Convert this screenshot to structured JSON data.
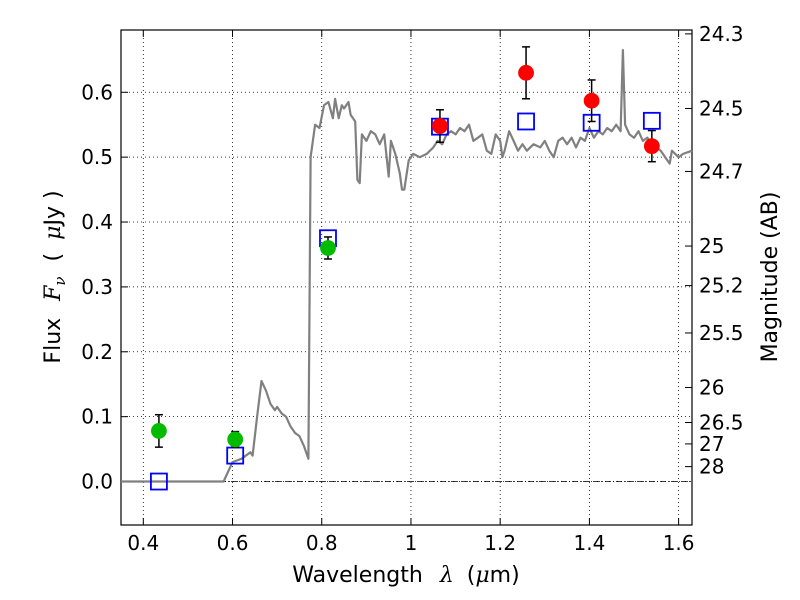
{
  "chart_data": {
    "type": "scatter",
    "xlabel_text": "Wavelength",
    "xlabel_symbol": "λ",
    "xlabel_unit_open": "(",
    "xlabel_unit_mu": "μ",
    "xlabel_unit_rest": "m)",
    "ylabel_text": "Flux",
    "ylabel_symbol": "F",
    "ylabel_sub": "ν",
    "ylabel_unit_open": "(",
    "ylabel_unit_mu": "μ",
    "ylabel_unit_rest": "Jy )",
    "y2label": "Magnitude (AB)",
    "xlim": [
      0.35,
      1.63
    ],
    "ylim": [
      -0.067,
      0.696
    ],
    "grid": true,
    "x_ticks": [
      0.4,
      0.6,
      0.8,
      1.0,
      1.2,
      1.4,
      1.6
    ],
    "x_tick_labels": [
      "0.4",
      "0.6",
      "0.8",
      "1",
      "1.2",
      "1.4",
      "1.6"
    ],
    "y_ticks": [
      0.0,
      0.1,
      0.2,
      0.3,
      0.4,
      0.5,
      0.6
    ],
    "y_tick_labels": [
      "0.0",
      "0.1",
      "0.2",
      "0.3",
      "0.4",
      "0.5",
      "0.6"
    ],
    "mag_ticks": [
      {
        "label": "24.3",
        "flux": 0.69
      },
      {
        "label": "24.5",
        "flux": 0.575
      },
      {
        "label": "24.7",
        "flux": 0.478
      },
      {
        "label": "25",
        "flux": 0.363
      },
      {
        "label": "25.2",
        "flux": 0.302
      },
      {
        "label": "25.5",
        "flux": 0.229
      },
      {
        "label": "26",
        "flux": 0.145
      },
      {
        "label": "26.5",
        "flux": 0.091
      },
      {
        "label": "27",
        "flux": 0.058
      },
      {
        "label": "28",
        "flux": 0.023
      }
    ],
    "model_spectrum": {
      "color": "#808080",
      "points": [
        [
          0.35,
          0.0
        ],
        [
          0.58,
          0.0
        ],
        [
          0.6,
          0.03
        ],
        [
          0.62,
          0.035
        ],
        [
          0.64,
          0.045
        ],
        [
          0.645,
          0.04
        ],
        [
          0.655,
          0.1
        ],
        [
          0.665,
          0.155
        ],
        [
          0.675,
          0.14
        ],
        [
          0.685,
          0.12
        ],
        [
          0.695,
          0.11
        ],
        [
          0.7,
          0.115
        ],
        [
          0.71,
          0.105
        ],
        [
          0.72,
          0.1
        ],
        [
          0.73,
          0.085
        ],
        [
          0.74,
          0.075
        ],
        [
          0.75,
          0.07
        ],
        [
          0.76,
          0.055
        ],
        [
          0.77,
          0.035
        ],
        [
          0.775,
          0.5
        ],
        [
          0.785,
          0.55
        ],
        [
          0.795,
          0.545
        ],
        [
          0.805,
          0.58
        ],
        [
          0.815,
          0.585
        ],
        [
          0.825,
          0.56
        ],
        [
          0.83,
          0.59
        ],
        [
          0.838,
          0.56
        ],
        [
          0.845,
          0.58
        ],
        [
          0.85,
          0.575
        ],
        [
          0.86,
          0.585
        ],
        [
          0.865,
          0.565
        ],
        [
          0.87,
          0.56
        ],
        [
          0.875,
          0.555
        ],
        [
          0.88,
          0.465
        ],
        [
          0.885,
          0.46
        ],
        [
          0.89,
          0.535
        ],
        [
          0.9,
          0.525
        ],
        [
          0.91,
          0.54
        ],
        [
          0.92,
          0.535
        ],
        [
          0.93,
          0.52
        ],
        [
          0.94,
          0.535
        ],
        [
          0.95,
          0.47
        ],
        [
          0.955,
          0.525
        ],
        [
          0.965,
          0.505
        ],
        [
          0.975,
          0.475
        ],
        [
          0.98,
          0.45
        ],
        [
          0.985,
          0.45
        ],
        [
          0.995,
          0.495
        ],
        [
          1.005,
          0.505
        ],
        [
          1.02,
          0.5
        ],
        [
          1.035,
          0.505
        ],
        [
          1.05,
          0.515
        ],
        [
          1.06,
          0.525
        ],
        [
          1.07,
          0.52
        ],
        [
          1.08,
          0.535
        ],
        [
          1.09,
          0.54
        ],
        [
          1.1,
          0.535
        ],
        [
          1.11,
          0.545
        ],
        [
          1.12,
          0.54
        ],
        [
          1.13,
          0.55
        ],
        [
          1.14,
          0.525
        ],
        [
          1.15,
          0.53
        ],
        [
          1.16,
          0.535
        ],
        [
          1.17,
          0.51
        ],
        [
          1.18,
          0.505
        ],
        [
          1.19,
          0.535
        ],
        [
          1.2,
          0.525
        ],
        [
          1.205,
          0.5
        ],
        [
          1.21,
          0.51
        ],
        [
          1.22,
          0.54
        ],
        [
          1.23,
          0.525
        ],
        [
          1.24,
          0.51
        ],
        [
          1.25,
          0.52
        ],
        [
          1.26,
          0.51
        ],
        [
          1.275,
          0.52
        ],
        [
          1.29,
          0.515
        ],
        [
          1.3,
          0.525
        ],
        [
          1.31,
          0.51
        ],
        [
          1.32,
          0.5
        ],
        [
          1.33,
          0.525
        ],
        [
          1.34,
          0.53
        ],
        [
          1.35,
          0.52
        ],
        [
          1.36,
          0.53
        ],
        [
          1.37,
          0.515
        ],
        [
          1.38,
          0.53
        ],
        [
          1.39,
          0.525
        ],
        [
          1.4,
          0.545
        ],
        [
          1.41,
          0.53
        ],
        [
          1.42,
          0.54
        ],
        [
          1.43,
          0.535
        ],
        [
          1.44,
          0.545
        ],
        [
          1.45,
          0.54
        ],
        [
          1.46,
          0.55
        ],
        [
          1.47,
          0.54
        ],
        [
          1.475,
          0.665
        ],
        [
          1.48,
          0.55
        ],
        [
          1.49,
          0.535
        ],
        [
          1.5,
          0.53
        ],
        [
          1.51,
          0.54
        ],
        [
          1.52,
          0.525
        ],
        [
          1.53,
          0.53
        ],
        [
          1.54,
          0.52
        ],
        [
          1.55,
          0.515
        ],
        [
          1.56,
          0.51
        ],
        [
          1.57,
          0.5
        ],
        [
          1.58,
          0.49
        ],
        [
          1.585,
          0.51
        ],
        [
          1.6,
          0.5
        ],
        [
          1.61,
          0.505
        ],
        [
          1.63,
          0.51
        ]
      ]
    },
    "model_photometry": {
      "color": "#0000ff",
      "x": [
        0.435,
        0.606,
        0.814,
        1.065,
        1.258,
        1.405,
        1.54
      ],
      "y": [
        0.0,
        0.04,
        0.375,
        0.547,
        0.555,
        0.553,
        0.556
      ]
    },
    "observed_points": [
      {
        "x": 0.435,
        "y": 0.078,
        "err": 0.025,
        "color": "#00bb00"
      },
      {
        "x": 0.606,
        "y": 0.065,
        "err": 0.012,
        "color": "#00bb00"
      },
      {
        "x": 0.814,
        "y": 0.36,
        "err": 0.017,
        "color": "#00bb00"
      },
      {
        "x": 1.065,
        "y": 0.548,
        "err": 0.025,
        "color": "#ff0000"
      },
      {
        "x": 1.258,
        "y": 0.63,
        "err": 0.04,
        "color": "#ff0000"
      },
      {
        "x": 1.405,
        "y": 0.587,
        "err": 0.032,
        "color": "#ff0000"
      },
      {
        "x": 1.54,
        "y": 0.517,
        "err": 0.024,
        "color": "#ff0000"
      }
    ]
  }
}
